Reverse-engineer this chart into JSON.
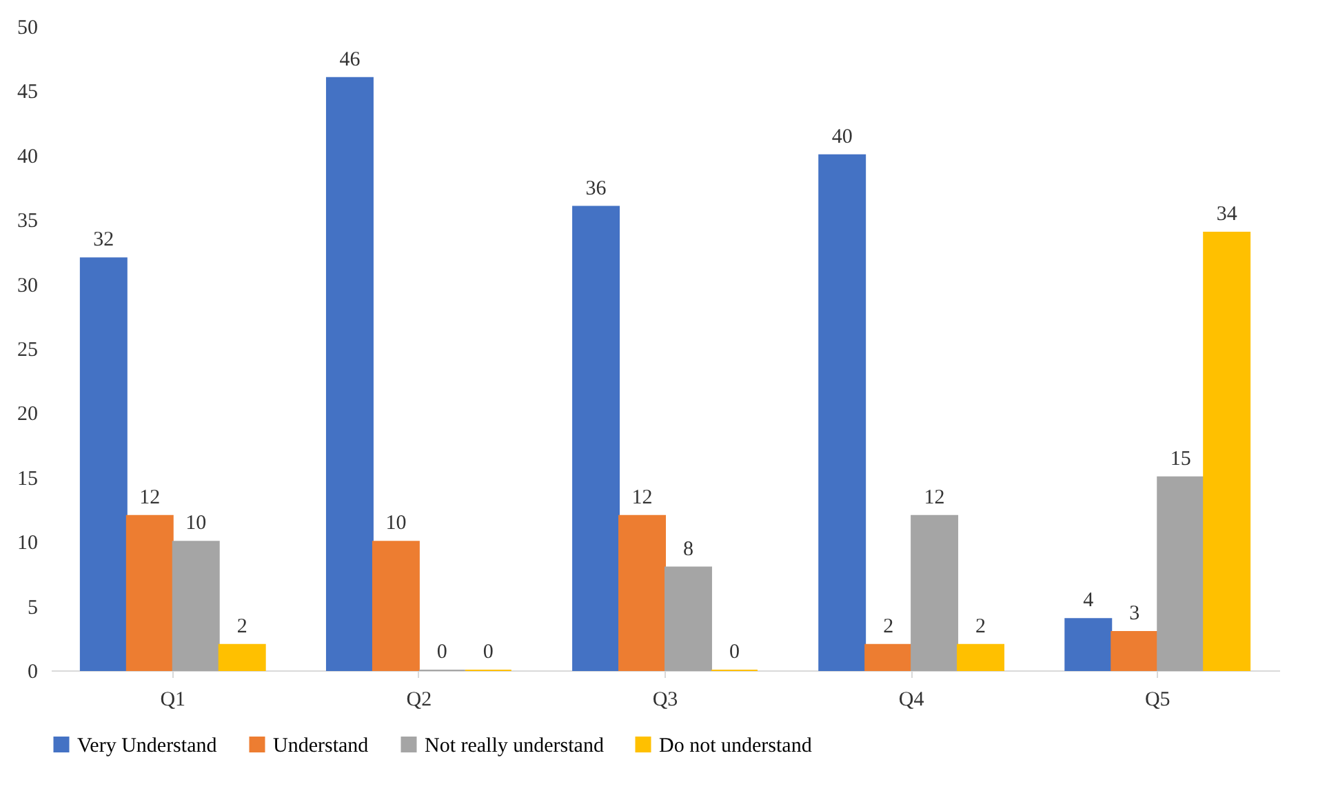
{
  "chart_data": {
    "type": "bar",
    "categories": [
      "Q1",
      "Q2",
      "Q3",
      "Q4",
      "Q5"
    ],
    "series": [
      {
        "name": "Very Understand",
        "color": "#4472c4",
        "values": [
          32,
          46,
          36,
          40,
          4
        ]
      },
      {
        "name": "Understand",
        "color": "#ed7d31",
        "values": [
          12,
          10,
          12,
          2,
          3
        ]
      },
      {
        "name": "Not really understand",
        "color": "#a5a5a5",
        "values": [
          10,
          0,
          8,
          12,
          15
        ]
      },
      {
        "name": "Do not understand",
        "color": "#ffc000",
        "values": [
          2,
          0,
          0,
          2,
          34
        ]
      }
    ],
    "ylim": [
      0,
      50
    ],
    "yticks": [
      0,
      5,
      10,
      15,
      20,
      25,
      30,
      35,
      40,
      45,
      50
    ],
    "grid": false,
    "legend": "bottom",
    "data_labels": true
  }
}
